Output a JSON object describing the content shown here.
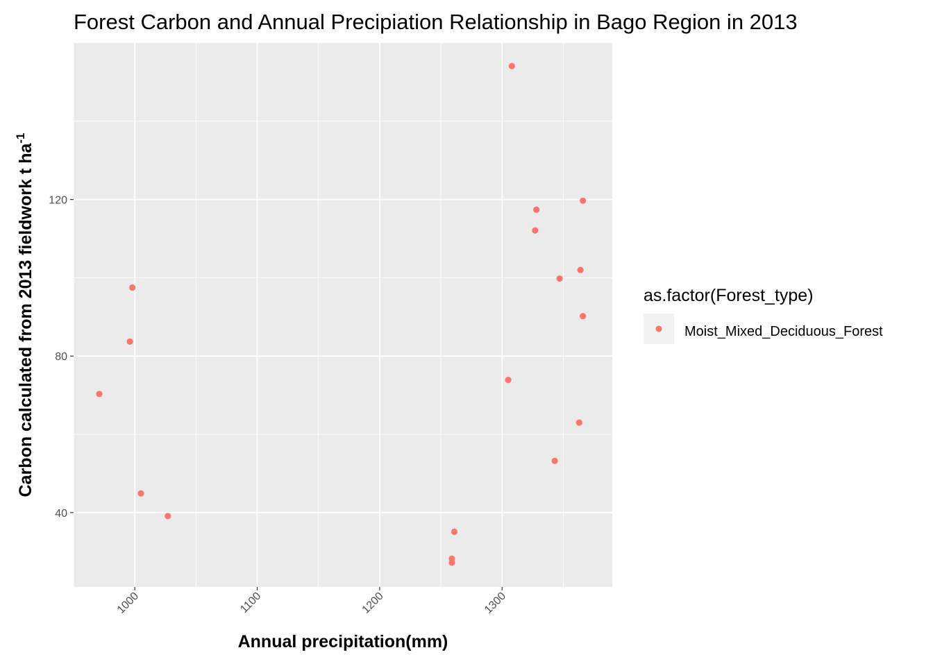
{
  "chart_data": {
    "type": "scatter",
    "title": "Forest Carbon and Annual Precipiation Relationship in Bago Region in 2013",
    "xlabel": "Annual precipitation(mm)",
    "ylabel": "Carbon calculated from 2013 fieldwork t ha",
    "ylabel_superscript": "-1",
    "xlim": [
      950,
      1390
    ],
    "ylim": [
      21,
      160
    ],
    "x_ticks": [
      1000,
      1100,
      1200,
      1300
    ],
    "y_ticks": [
      40,
      80,
      120
    ],
    "grid": true,
    "legend_position": "right",
    "legend_title": "as.factor(Forest_type)",
    "point_color": "#F8766D",
    "panel_color": "#EBEBEB",
    "series": [
      {
        "name": "Moist_Mixed_Deciduous_Forest",
        "points": [
          {
            "x": 971,
            "y": 70.3
          },
          {
            "x": 996,
            "y": 83.7
          },
          {
            "x": 998,
            "y": 97.5
          },
          {
            "x": 1005,
            "y": 44.9
          },
          {
            "x": 1027,
            "y": 39.1
          },
          {
            "x": 1259,
            "y": 27.2
          },
          {
            "x": 1259,
            "y": 28.2
          },
          {
            "x": 1261,
            "y": 35.1
          },
          {
            "x": 1305,
            "y": 73.9
          },
          {
            "x": 1308,
            "y": 154.1
          },
          {
            "x": 1327,
            "y": 112.1
          },
          {
            "x": 1328,
            "y": 117.4
          },
          {
            "x": 1343,
            "y": 53.2
          },
          {
            "x": 1347,
            "y": 99.8
          },
          {
            "x": 1363,
            "y": 63.0
          },
          {
            "x": 1364,
            "y": 102.0
          },
          {
            "x": 1366,
            "y": 119.7
          },
          {
            "x": 1366,
            "y": 90.2
          }
        ]
      }
    ]
  }
}
